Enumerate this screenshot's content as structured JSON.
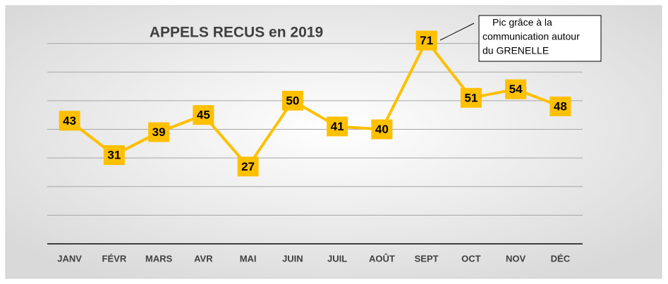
{
  "chart_data": {
    "type": "line",
    "title": "APPELS RECUS en 2019",
    "categories": [
      "JANV",
      "FÉVR",
      "MARS",
      "AVR",
      "MAI",
      "JUIN",
      "JUIL",
      "AOÛT",
      "SEPT",
      "OCT",
      "NOV",
      "DÉC"
    ],
    "values": [
      43,
      31,
      39,
      45,
      27,
      50,
      41,
      40,
      71,
      51,
      54,
      48
    ],
    "color": "#ffc000",
    "ylim": [
      0,
      80
    ],
    "yticks": [
      0,
      10,
      20,
      30,
      40,
      50,
      60,
      70
    ],
    "grid": true,
    "annotation": [
      "Pic grâce à la",
      "communication autour",
      "du GRENELLE"
    ]
  }
}
